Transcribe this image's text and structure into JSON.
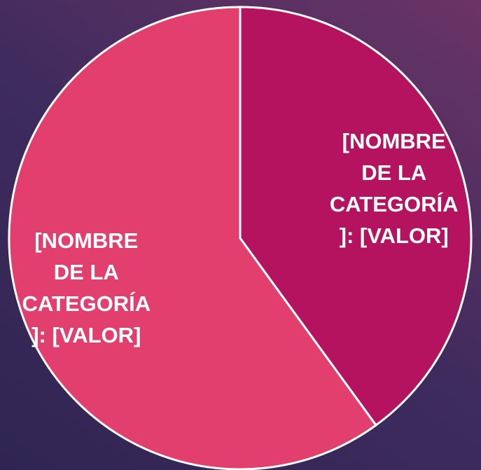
{
  "chart_data": {
    "type": "pie",
    "values": [
      40,
      60
    ],
    "value_labels": [
      "[NOMBRE DE LA CATEGORÍA]: [VALOR]",
      "[NOMBRE DE LA CATEGORÍA]: [VALOR]"
    ],
    "colors": [
      "#b5135f",
      "#e23f6e"
    ]
  }
}
